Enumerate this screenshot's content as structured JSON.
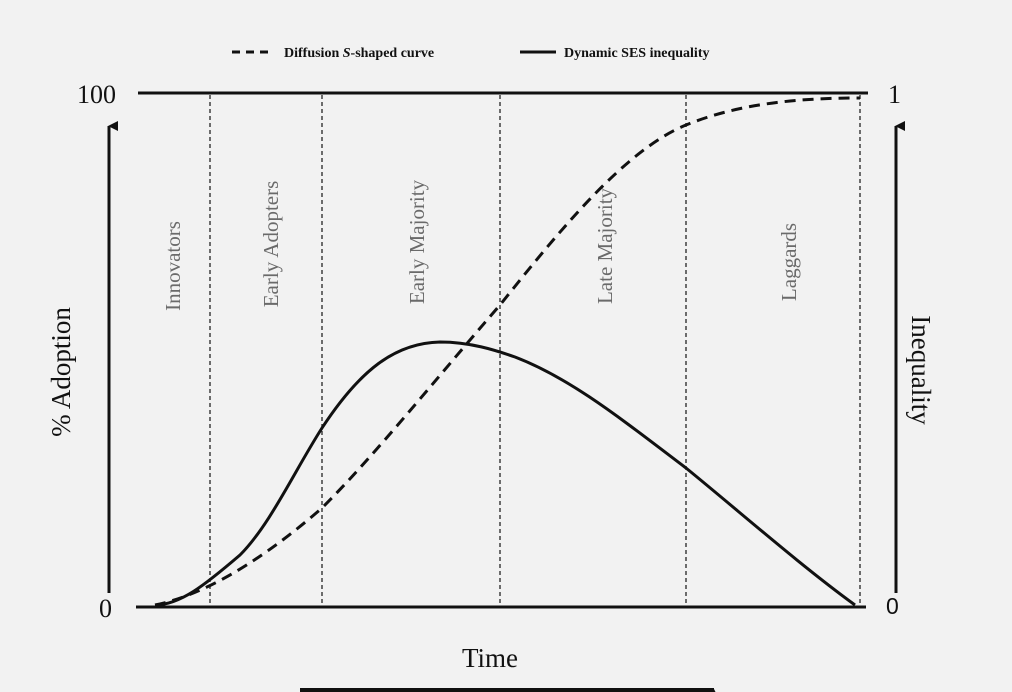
{
  "legend": {
    "dashed_prefix": "Diffusion ",
    "dashed_italic": "S",
    "dashed_suffix": "-shaped curve",
    "solid": "Dynamic SES inequality"
  },
  "phases": [
    {
      "label": "Innovators"
    },
    {
      "label": "Early Adopters"
    },
    {
      "label": "Early Majority"
    },
    {
      "label": "Late  Majority"
    },
    {
      "label": "Laggards"
    }
  ],
  "axes": {
    "left_label": "% Adoption",
    "right_label": "Inequality",
    "bottom_label": "Time",
    "left_max": "100",
    "left_min": "0",
    "right_max": "1",
    "right_min": "0"
  },
  "colors": {
    "line": "#111111",
    "phase_text": "#6a6a6a",
    "background": "#f2f2f2"
  }
}
